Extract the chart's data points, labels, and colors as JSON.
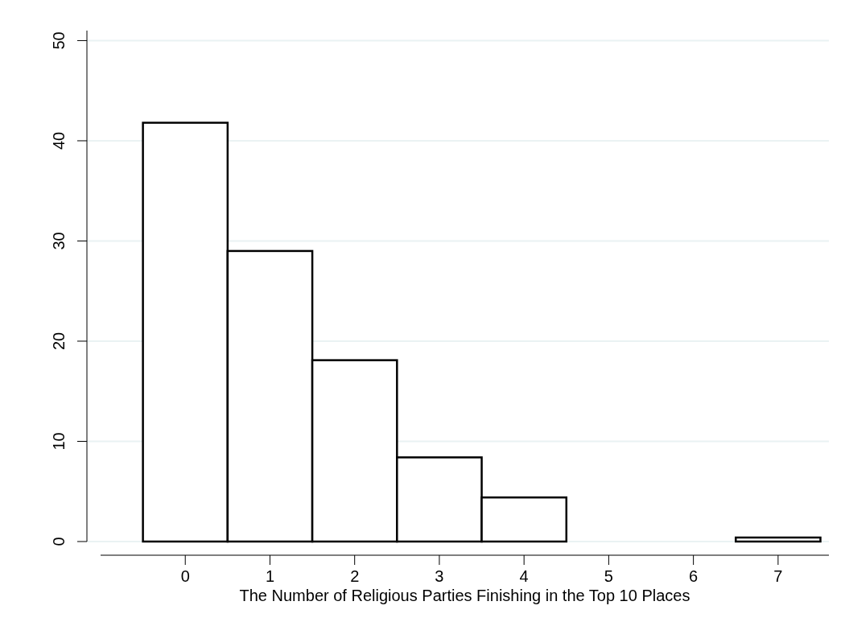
{
  "chart_data": {
    "type": "histogram",
    "xlabel": "The Number of Religious Parties Finishing in the Top 10 Places",
    "bins": [
      -0.5,
      0.5,
      1.5,
      2.5,
      3.5,
      4.5,
      5.5,
      6.5,
      7.5
    ],
    "values": [
      41.8,
      29.0,
      18.1,
      8.4,
      4.4,
      0,
      0,
      0.4
    ],
    "color": "#ffffff",
    "xlim": [
      -1,
      7.6
    ],
    "xticks": [
      0,
      1,
      2,
      3,
      4,
      5,
      6,
      7
    ],
    "ylim": [
      0,
      51
    ],
    "yticks": [
      0,
      10,
      20,
      30,
      40,
      50
    ],
    "grid": "y"
  }
}
